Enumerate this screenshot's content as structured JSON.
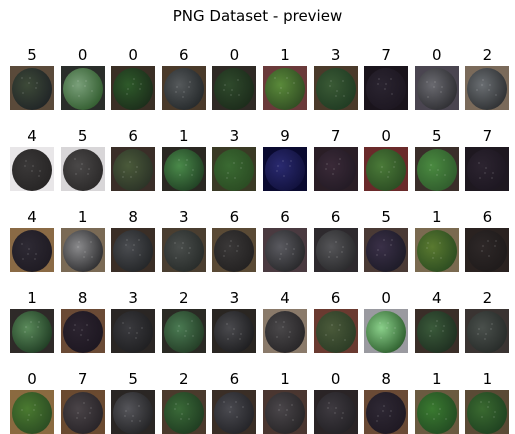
{
  "title": "PNG Dataset - preview",
  "grid": {
    "rows": 5,
    "cols": 10,
    "labels": [
      [
        "5",
        "0",
        "0",
        "6",
        "0",
        "1",
        "3",
        "7",
        "0",
        "2"
      ],
      [
        "4",
        "5",
        "6",
        "1",
        "3",
        "9",
        "7",
        "0",
        "5",
        "7"
      ],
      [
        "4",
        "1",
        "8",
        "3",
        "6",
        "6",
        "6",
        "5",
        "1",
        "6"
      ],
      [
        "1",
        "8",
        "3",
        "2",
        "3",
        "4",
        "6",
        "0",
        "4",
        "2"
      ],
      [
        "0",
        "7",
        "5",
        "2",
        "6",
        "1",
        "0",
        "8",
        "1",
        "1"
      ]
    ],
    "images": [
      [
        {
          "bg": "#5a4a3a",
          "fruit": "#1f2326",
          "tint": "#3d4a38"
        },
        {
          "bg": "#2a2e2a",
          "fruit": "#2f5a2c",
          "tint": "#7aa07a"
        },
        {
          "bg": "#3a2f25",
          "fruit": "#1b2b1a",
          "tint": "#2e5a2a"
        },
        {
          "bg": "#4a3a2a",
          "fruit": "#232729",
          "tint": "#55595b"
        },
        {
          "bg": "#2f2a25",
          "fruit": "#1b2a1a",
          "tint": "#2f4a2c"
        },
        {
          "bg": "#6a3a3a",
          "fruit": "#2f4a22",
          "tint": "#5a8a3a"
        },
        {
          "bg": "#4a3a2a",
          "fruit": "#1f3a22",
          "tint": "#3a5a35"
        },
        {
          "bg": "#1a141c",
          "fruit": "#1c1620",
          "tint": "#2a2430"
        },
        {
          "bg": "#4a4550",
          "fruit": "#2c2c30",
          "tint": "#6a6a70"
        },
        {
          "bg": "#7a6a5a",
          "fruit": "#2c2e30",
          "tint": "#6a6e72"
        }
      ],
      [
        {
          "bg": "#e8e6e8",
          "fruit": "#262424",
          "tint": "#3a3838"
        },
        {
          "bg": "#d8d6d8",
          "fruit": "#2a2828",
          "tint": "#4a4848"
        },
        {
          "bg": "#3a2e28",
          "fruit": "#2a3126",
          "tint": "#4a5a3a"
        },
        {
          "bg": "#2a2822",
          "fruit": "#1f3d22",
          "tint": "#4a8a4a"
        },
        {
          "bg": "#3a3a25",
          "fruit": "#2a4a22",
          "tint": "#3a6a32"
        },
        {
          "bg": "#0a0a30",
          "fruit": "#10103a",
          "tint": "#2a2a70"
        },
        {
          "bg": "#2a1e26",
          "fruit": "#221a24",
          "tint": "#3a2a38"
        },
        {
          "bg": "#6a2a2a",
          "fruit": "#2a4a22",
          "tint": "#4a7a38"
        },
        {
          "bg": "#3a2e2a",
          "fruit": "#2f5a2c",
          "tint": "#4a8a40"
        },
        {
          "bg": "#1e1820",
          "fruit": "#1c1620",
          "tint": "#2c2430"
        }
      ],
      [
        {
          "bg": "#8a6a45",
          "fruit": "#1e1a22",
          "tint": "#2e2a34"
        },
        {
          "bg": "#7a6a55",
          "fruit": "#2a2a2c",
          "tint": "#8a8a8c"
        },
        {
          "bg": "#3a2e26",
          "fruit": "#222426",
          "tint": "#4a4c50"
        },
        {
          "bg": "#4a3e30",
          "fruit": "#262a28",
          "tint": "#4a4e4c"
        },
        {
          "bg": "#5a4a35",
          "fruit": "#222020",
          "tint": "#3a3838"
        },
        {
          "bg": "#4a3a40",
          "fruit": "#262628",
          "tint": "#5a5a60"
        },
        {
          "bg": "#2e2a2e",
          "fruit": "#28282a",
          "tint": "#555558"
        },
        {
          "bg": "#4a3a35",
          "fruit": "#1c1a26",
          "tint": "#3a3048"
        },
        {
          "bg": "#7a6a50",
          "fruit": "#2a4a20",
          "tint": "#5a7a30"
        },
        {
          "bg": "#2a2220",
          "fruit": "#1e1a1a",
          "tint": "#2e2828"
        }
      ],
      [
        {
          "bg": "#2e2a28",
          "fruit": "#1e3a22",
          "tint": "#5a8a5a"
        },
        {
          "bg": "#6a4a35",
          "fruit": "#1c1620",
          "tint": "#2c2430"
        },
        {
          "bg": "#2a2624",
          "fruit": "#1e1e20",
          "tint": "#3a3a3e"
        },
        {
          "bg": "#2a2a24",
          "fruit": "#223a24",
          "tint": "#4a7a52"
        },
        {
          "bg": "#2a2622",
          "fruit": "#1c1c1e",
          "tint": "#4a4a4e"
        },
        {
          "bg": "#8a7a6a",
          "fruit": "#262426",
          "tint": "#4a484a"
        },
        {
          "bg": "#6a3a30",
          "fruit": "#2a3a24",
          "tint": "#4a5a3a"
        },
        {
          "bg": "#9a9aa0",
          "fruit": "#2a5a2a",
          "tint": "#8ad08a"
        },
        {
          "bg": "#3a2e28",
          "fruit": "#1e2e20",
          "tint": "#3a5a3a"
        },
        {
          "bg": "#3a3432",
          "fruit": "#262a28",
          "tint": "#4a504c"
        }
      ],
      [
        {
          "bg": "#8a6a40",
          "fruit": "#2a4a22",
          "tint": "#4a7a30"
        },
        {
          "bg": "#6a4a30",
          "fruit": "#262226",
          "tint": "#4a4448"
        },
        {
          "bg": "#2a2624",
          "fruit": "#222224",
          "tint": "#55555a"
        },
        {
          "bg": "#4a3a2c",
          "fruit": "#1e3a20",
          "tint": "#3a6a38"
        },
        {
          "bg": "#3a2e26",
          "fruit": "#222226",
          "tint": "#4a4a50"
        },
        {
          "bg": "#4a3630",
          "fruit": "#262426",
          "tint": "#4a464a"
        },
        {
          "bg": "#2a2426",
          "fruit": "#222024",
          "tint": "#3e3a40"
        },
        {
          "bg": "#6a4a35",
          "fruit": "#1e1822",
          "tint": "#2e2834"
        },
        {
          "bg": "#6a5a40",
          "fruit": "#224a22",
          "tint": "#3a7a30"
        },
        {
          "bg": "#5a4a35",
          "fruit": "#1e4020",
          "tint": "#3a6a30"
        }
      ]
    ]
  }
}
